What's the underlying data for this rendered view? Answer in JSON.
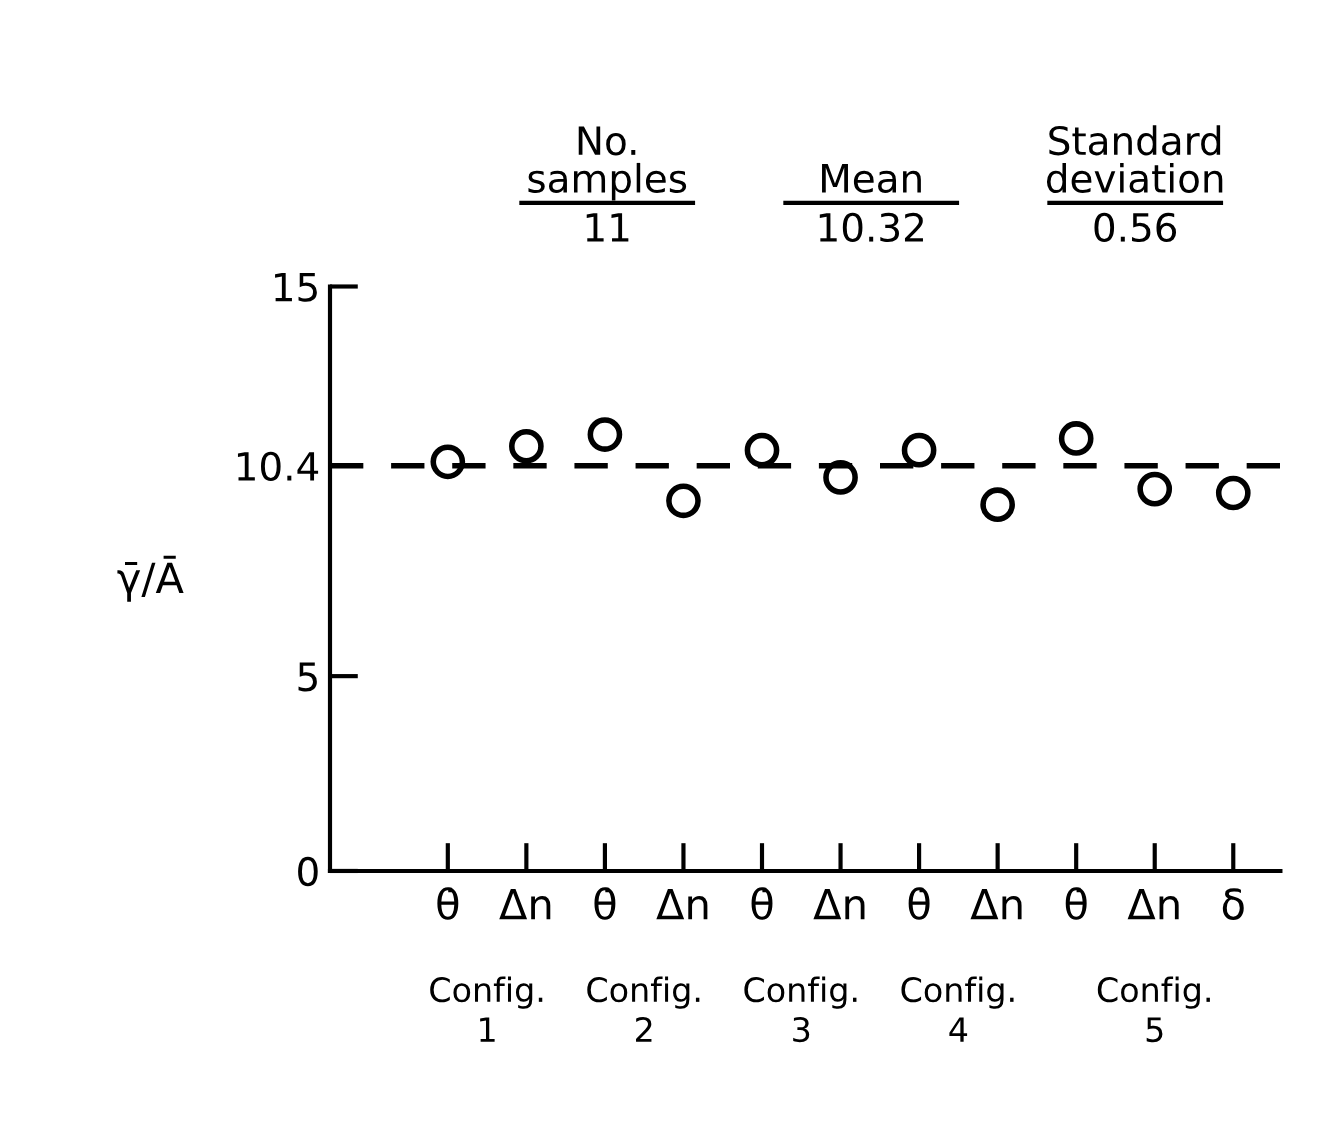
{
  "chart_data": {
    "type": "scatter",
    "ylabel": "γ̄/Ā",
    "categories": [
      "θ̇",
      "Δn",
      "θ̇",
      "Δn",
      "θ̇",
      "Δn",
      "θ̇",
      "Δn",
      "θ̇",
      "Δn",
      "δ"
    ],
    "values": [
      10.5,
      10.9,
      11.2,
      9.5,
      10.8,
      10.1,
      10.8,
      9.4,
      11.1,
      9.8,
      9.7
    ],
    "color": "#000000",
    "marker": "circle",
    "ylim": [
      0,
      15
    ],
    "yticks": [
      0,
      5,
      10.4,
      15
    ],
    "ref_lines": [
      {
        "axis": "y",
        "value": 10.4,
        "line_style": "dashed",
        "color": "#000000"
      }
    ],
    "grid": false,
    "legend": false,
    "annotations": [
      "No.\nsamples",
      "11",
      "Mean",
      "10.32",
      "Standard\ndeviation",
      "0.56",
      "Config.\n1",
      "Config.\n2",
      "Config.\n3",
      "Config.\n4",
      "Config.\n5"
    ]
  }
}
